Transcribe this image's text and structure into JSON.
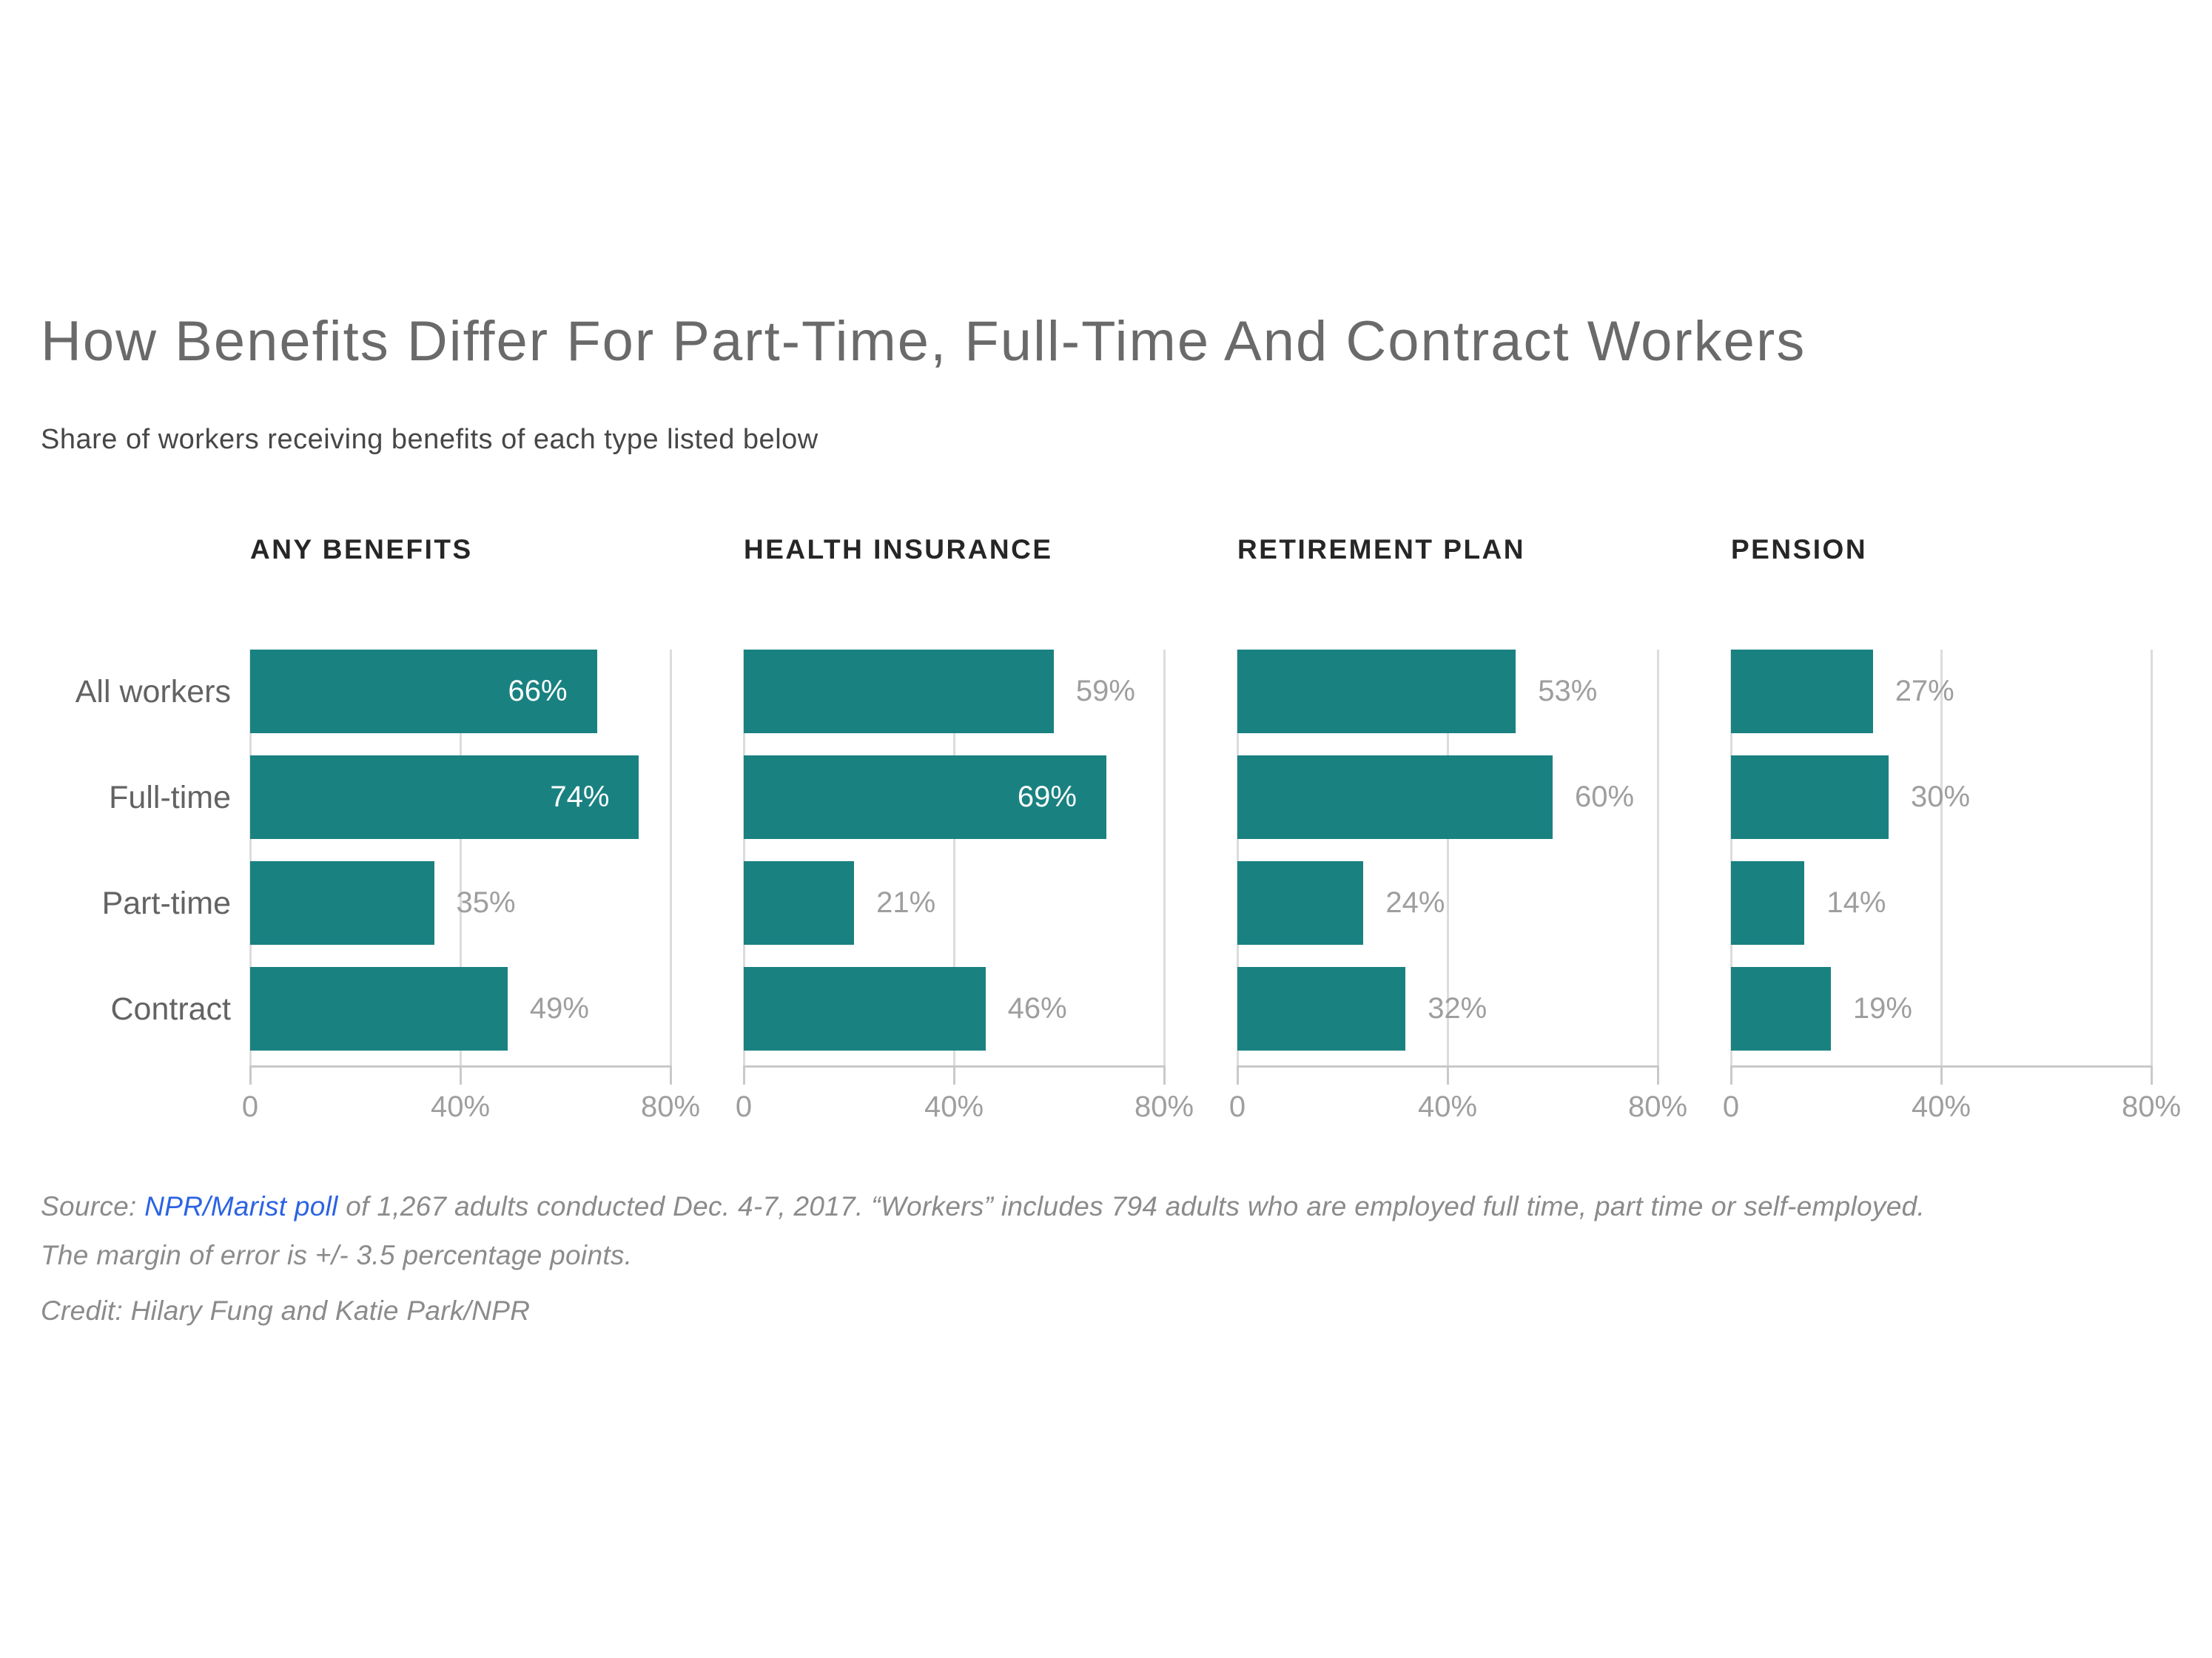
{
  "header": {
    "title": "How Benefits Differ For Part-Time, Full-Time And Contract Workers",
    "subtitle": "Share of workers receiving benefits of each type listed below"
  },
  "chart_data": {
    "type": "bar",
    "orientation": "horizontal",
    "unit": "percent",
    "categories": [
      "All workers",
      "Full-time",
      "Part-time",
      "Contract"
    ],
    "axis": {
      "min": 0,
      "max": 80,
      "tick_values": [
        0,
        40,
        80
      ],
      "tick_labels": [
        "0",
        "40%",
        "80%"
      ],
      "grid": true
    },
    "legend": "none",
    "panels": [
      {
        "title": "ANY BENEFITS",
        "values": [
          66,
          74,
          35,
          49
        ],
        "value_labels": [
          "66%",
          "74%",
          "35%",
          "49%"
        ],
        "label_inside": [
          true,
          true,
          false,
          false
        ]
      },
      {
        "title": "HEALTH INSURANCE",
        "values": [
          59,
          69,
          21,
          46
        ],
        "value_labels": [
          "59%",
          "69%",
          "21%",
          "46%"
        ],
        "label_inside": [
          false,
          true,
          false,
          false
        ]
      },
      {
        "title": "RETIREMENT PLAN",
        "values": [
          53,
          60,
          24,
          32
        ],
        "value_labels": [
          "53%",
          "60%",
          "24%",
          "32%"
        ],
        "label_inside": [
          false,
          false,
          false,
          false
        ]
      },
      {
        "title": "PENSION",
        "values": [
          27,
          30,
          14,
          19
        ],
        "value_labels": [
          "27%",
          "30%",
          "14%",
          "19%"
        ],
        "label_inside": [
          false,
          false,
          false,
          false
        ]
      }
    ]
  },
  "footer": {
    "source_prefix": "Source: ",
    "source_link_text": "NPR/Marist poll",
    "source_rest": " of 1,267 adults conducted Dec. 4-7, 2017. “Workers” includes 794 adults who are employed full time, part time or self-employed. The margin of error is +/- 3.5 percentage points.",
    "credit": "Credit: Hilary Fung and Katie Park/NPR"
  },
  "colors": {
    "bar_teal": "#1a8181",
    "link_blue": "#2c63e3",
    "title_gray": "#6a6a6a",
    "value_label_gray": "#9e9e9e",
    "grid_gray": "#dcdcdc",
    "axis_gray": "#c9c9c9"
  }
}
